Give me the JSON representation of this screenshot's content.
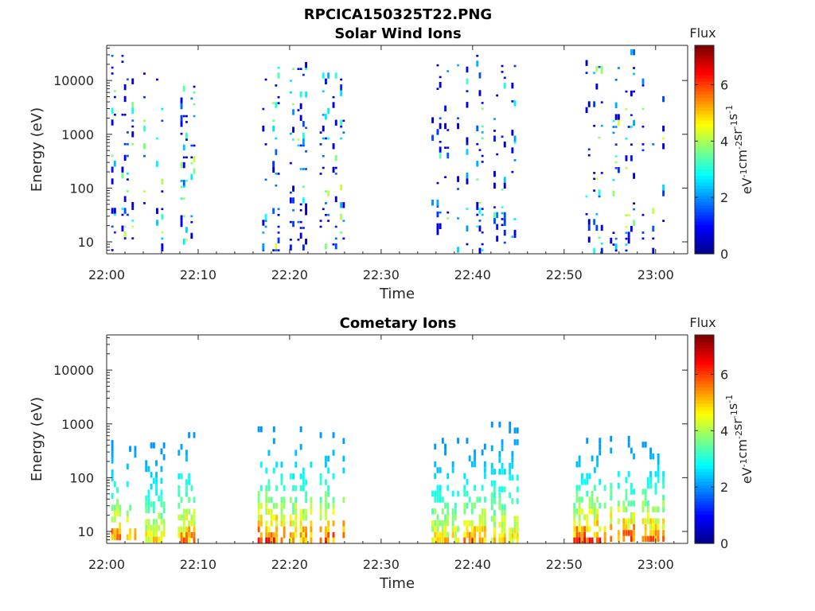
{
  "figure_title": "RPCICA150325T22.PNG",
  "colormap": [
    "#00008f",
    "#0000ff",
    "#0080ff",
    "#00ffff",
    "#80ff80",
    "#ffff00",
    "#ff8000",
    "#ff0000",
    "#800000"
  ],
  "chart_data": [
    {
      "type": "heatmap",
      "title": "Solar Wind Ions",
      "xlabel": "Time",
      "ylabel": "Energy (eV)",
      "x_ticks": [
        "22:00",
        "22:10",
        "22:20",
        "22:30",
        "22:40",
        "22:50",
        "23:00"
      ],
      "x_range_minutes": [
        0,
        63.5
      ],
      "y_scale": "log",
      "y_range": [
        6,
        45000
      ],
      "y_ticks": [
        "10",
        "100",
        "1000",
        "10000"
      ],
      "y_tick_values": [
        10,
        100,
        1000,
        10000
      ],
      "colorbar": {
        "title": "Flux",
        "label": "eV-1cm-2sr-1s-1",
        "range": [
          0,
          7.4
        ],
        "ticks": [
          "0",
          "2",
          "4",
          "6"
        ],
        "tick_values": [
          0,
          2,
          4,
          6
        ]
      },
      "bursts": [
        {
          "start_min": 0.5,
          "end_min": 3.2,
          "energy_range": [
            7,
            30000
          ],
          "flux_range": [
            0.5,
            4.5
          ]
        },
        {
          "start_min": 4.0,
          "end_min": 6.5,
          "energy_range": [
            7,
            14000
          ],
          "flux_range": [
            0.5,
            4.5
          ]
        },
        {
          "start_min": 7.5,
          "end_min": 9.5,
          "energy_range": [
            7,
            8000
          ],
          "flux_range": [
            0.5,
            4.5
          ]
        },
        {
          "start_min": 17.0,
          "end_min": 19.5,
          "energy_range": [
            7,
            18000
          ],
          "flux_range": [
            0.5,
            4.5
          ]
        },
        {
          "start_min": 20.0,
          "end_min": 22.5,
          "energy_range": [
            8,
            22000
          ],
          "flux_range": [
            0.5,
            4.5
          ]
        },
        {
          "start_min": 23.0,
          "end_min": 25.8,
          "energy_range": [
            8,
            14000
          ],
          "flux_range": [
            0.5,
            4.5
          ]
        },
        {
          "start_min": 35.5,
          "end_min": 38.5,
          "energy_range": [
            7,
            20000
          ],
          "flux_range": [
            0.5,
            4.0
          ]
        },
        {
          "start_min": 39.0,
          "end_min": 41.5,
          "energy_range": [
            7,
            30000
          ],
          "flux_range": [
            0.5,
            4.0
          ]
        },
        {
          "start_min": 42.0,
          "end_min": 45.0,
          "energy_range": [
            8,
            25000
          ],
          "flux_range": [
            0.5,
            4.0
          ]
        },
        {
          "start_min": 51.5,
          "end_min": 54.5,
          "energy_range": [
            7,
            24000
          ],
          "flux_range": [
            0.5,
            4.5
          ]
        },
        {
          "start_min": 55.0,
          "end_min": 58.0,
          "energy_range": [
            7,
            38000
          ],
          "flux_range": [
            0.5,
            4.5
          ]
        },
        {
          "start_min": 58.5,
          "end_min": 61.0,
          "energy_range": [
            7,
            14000
          ],
          "flux_range": [
            0.5,
            4.5
          ]
        }
      ]
    },
    {
      "type": "heatmap",
      "title": "Cometary Ions",
      "xlabel": "Time",
      "ylabel": "Energy (eV)",
      "x_ticks": [
        "22:00",
        "22:10",
        "22:20",
        "22:30",
        "22:40",
        "22:50",
        "23:00"
      ],
      "x_range_minutes": [
        0,
        63.5
      ],
      "y_scale": "log",
      "y_range": [
        6,
        45000
      ],
      "y_ticks": [
        "10",
        "100",
        "1000",
        "10000"
      ],
      "y_tick_values": [
        10,
        100,
        1000,
        10000
      ],
      "colorbar": {
        "title": "Flux",
        "label": "eV-1cm-2sr-1s-1",
        "range": [
          0,
          7.4
        ],
        "ticks": [
          "0",
          "2",
          "4",
          "6"
        ],
        "tick_values": [
          0,
          2,
          4,
          6
        ]
      },
      "bursts": [
        {
          "start_min": 0.5,
          "end_min": 3.2,
          "energy_range": [
            7,
            500
          ],
          "flux_range": [
            2.0,
            6.5
          ]
        },
        {
          "start_min": 4.2,
          "end_min": 6.5,
          "energy_range": [
            7,
            450
          ],
          "flux_range": [
            2.0,
            5.5
          ]
        },
        {
          "start_min": 7.5,
          "end_min": 9.5,
          "energy_range": [
            7,
            700
          ],
          "flux_range": [
            2.0,
            6.3
          ]
        },
        {
          "start_min": 16.5,
          "end_min": 19.5,
          "energy_range": [
            7,
            900
          ],
          "flux_range": [
            2.0,
            6.8
          ]
        },
        {
          "start_min": 20.0,
          "end_min": 22.5,
          "energy_range": [
            7,
            900
          ],
          "flux_range": [
            2.0,
            6.3
          ]
        },
        {
          "start_min": 23.0,
          "end_min": 25.8,
          "energy_range": [
            7,
            700
          ],
          "flux_range": [
            2.0,
            6.8
          ]
        },
        {
          "start_min": 35.5,
          "end_min": 38.5,
          "energy_range": [
            7,
            550
          ],
          "flux_range": [
            2.0,
            5.5
          ]
        },
        {
          "start_min": 39.0,
          "end_min": 41.5,
          "energy_range": [
            7,
            550
          ],
          "flux_range": [
            2.0,
            6.2
          ]
        },
        {
          "start_min": 42.0,
          "end_min": 45.0,
          "energy_range": [
            7,
            1100
          ],
          "flux_range": [
            2.0,
            5.5
          ]
        },
        {
          "start_min": 51.0,
          "end_min": 54.5,
          "energy_range": [
            7,
            550
          ],
          "flux_range": [
            2.0,
            6.8
          ]
        },
        {
          "start_min": 55.0,
          "end_min": 58.0,
          "energy_range": [
            7,
            600
          ],
          "flux_range": [
            2.0,
            6.8
          ]
        },
        {
          "start_min": 58.5,
          "end_min": 61.0,
          "energy_range": [
            7,
            600
          ],
          "flux_range": [
            2.0,
            6.5
          ]
        }
      ]
    }
  ]
}
